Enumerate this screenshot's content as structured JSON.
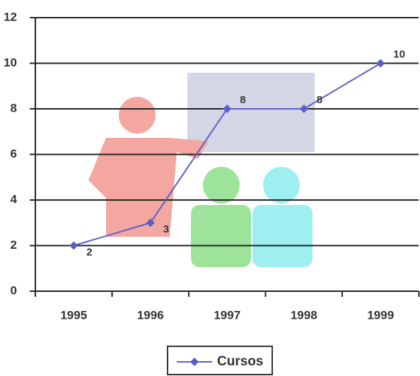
{
  "chart_data": {
    "type": "line",
    "categories": [
      "1995",
      "1996",
      "1997",
      "1998",
      "1999"
    ],
    "series": [
      {
        "name": "Cursos",
        "color": "#5a5fc8",
        "values": [
          2,
          3,
          8,
          8,
          10
        ]
      }
    ],
    "ylim": [
      0,
      12
    ],
    "yticks": [
      0,
      2,
      4,
      6,
      8,
      10,
      12
    ],
    "grid": true,
    "legend": "bottom"
  }
}
